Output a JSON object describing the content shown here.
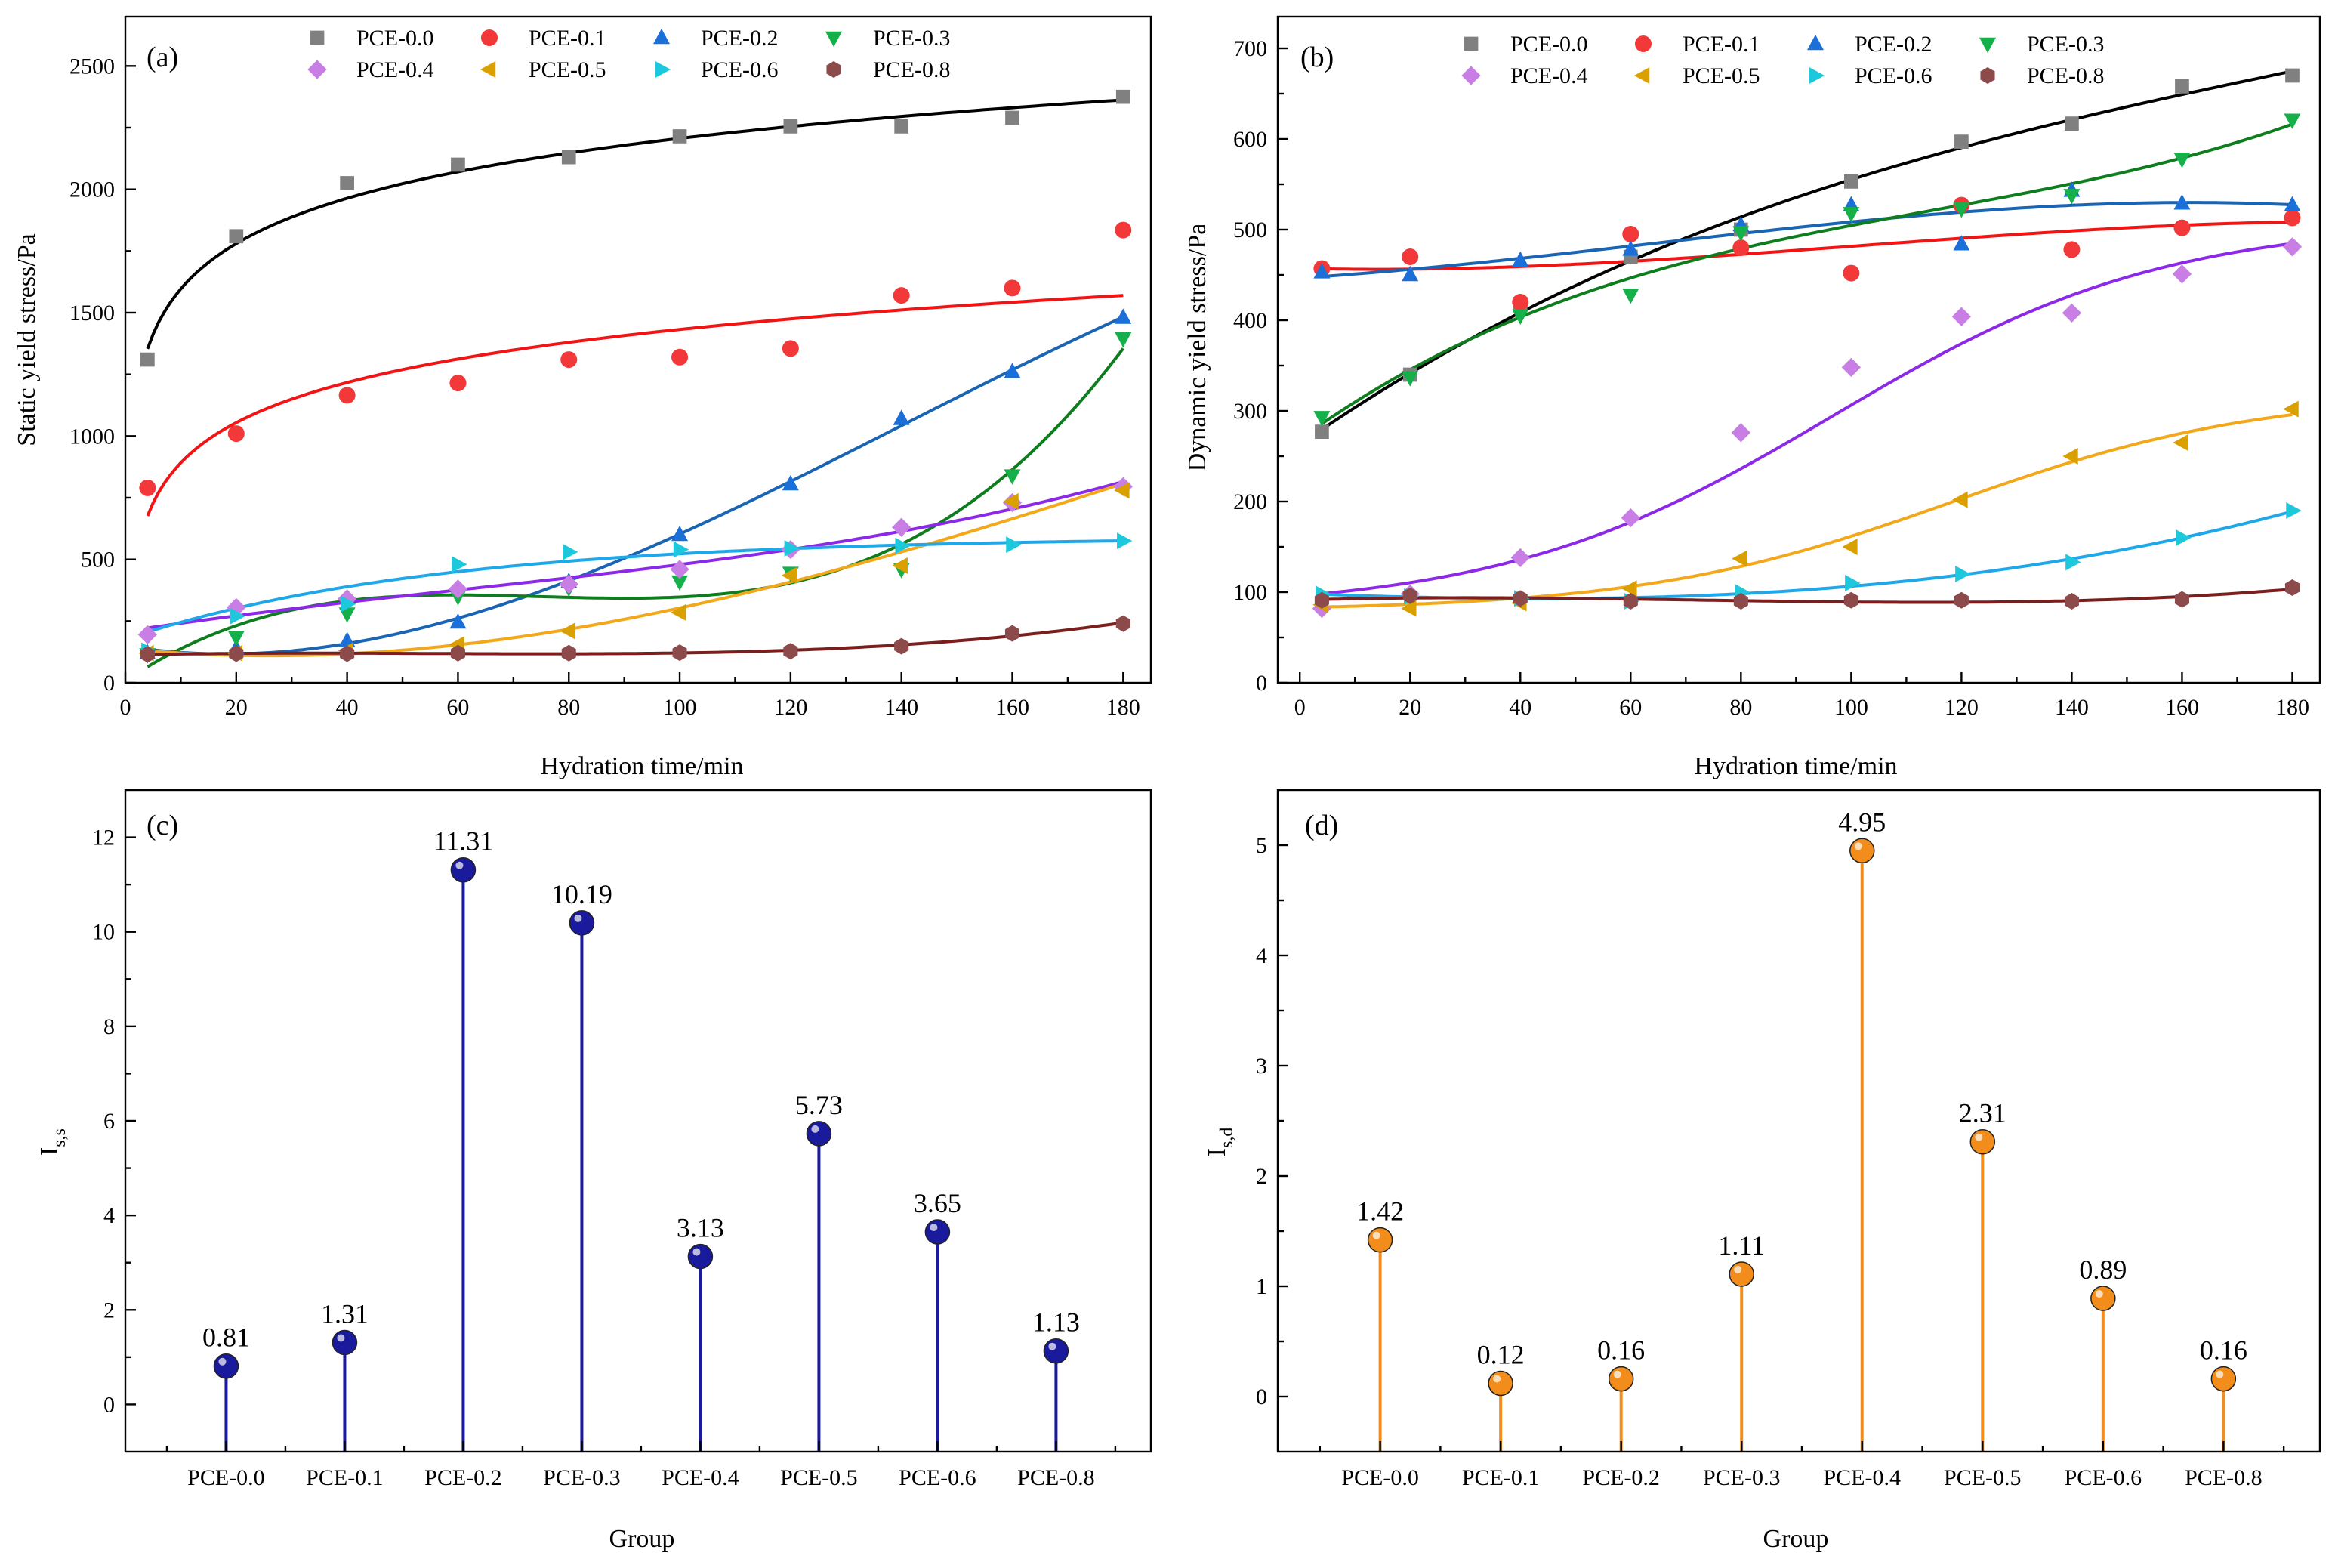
{
  "legend_series": [
    {
      "label": "PCE-0.0",
      "color": "#808080",
      "marker": "square",
      "curve": "#000000"
    },
    {
      "label": "PCE-0.1",
      "color": "#f23838",
      "marker": "circle",
      "curve": "#f21414"
    },
    {
      "label": "PCE-0.2",
      "color": "#1a6fd8",
      "marker": "triangle-up",
      "curve": "#1a64b4"
    },
    {
      "label": "PCE-0.3",
      "color": "#16b04a",
      "marker": "triangle-down",
      "curve": "#0d7d1e"
    },
    {
      "label": "PCE-0.4",
      "color": "#c97ee6",
      "marker": "diamond",
      "curve": "#8c28e8"
    },
    {
      "label": "PCE-0.5",
      "color": "#d9a000",
      "marker": "triangle-left",
      "curve": "#f2a81a"
    },
    {
      "label": "PCE-0.6",
      "color": "#1ec8dc",
      "marker": "triangle-right",
      "curve": "#1ea8ea"
    },
    {
      "label": "PCE-0.8",
      "color": "#8c4a4a",
      "marker": "hexagon",
      "curve": "#7a1e1e"
    }
  ],
  "chart_data": [
    {
      "type": "scatter",
      "panel_label": "(a)",
      "xlabel": "Hydration time/min",
      "ylabel": "Static yield stress/Pa",
      "xlim": [
        0,
        185
      ],
      "ylim": [
        0,
        2700
      ],
      "x_ticks": [
        0,
        20,
        40,
        60,
        80,
        100,
        120,
        140,
        160,
        180
      ],
      "y_ticks": [
        0,
        500,
        1000,
        1500,
        2000,
        2500
      ],
      "x": [
        4,
        20,
        40,
        60,
        80,
        100,
        120,
        140,
        160,
        180
      ],
      "series": [
        {
          "name": "PCE-0.0",
          "values": [
            1310,
            1810,
            2025,
            2100,
            2130,
            2215,
            2255,
            2255,
            2290,
            2375
          ],
          "fit": "log"
        },
        {
          "name": "PCE-0.1",
          "values": [
            790,
            1010,
            1165,
            1215,
            1310,
            1320,
            1355,
            1570,
            1600,
            1835
          ],
          "fit": "log"
        },
        {
          "name": "PCE-0.2",
          "values": [
            120,
            140,
            170,
            245,
            410,
            600,
            805,
            1070,
            1260,
            1480
          ],
          "fit": "poly"
        },
        {
          "name": "PCE-0.3",
          "values": [
            115,
            185,
            280,
            350,
            385,
            410,
            445,
            460,
            840,
            1395
          ],
          "fit": "poly"
        },
        {
          "name": "PCE-0.4",
          "values": [
            195,
            305,
            340,
            380,
            400,
            460,
            540,
            630,
            730,
            795
          ],
          "fit": "poly"
        },
        {
          "name": "PCE-0.5",
          "values": [
            120,
            120,
            130,
            155,
            210,
            285,
            435,
            475,
            735,
            780
          ],
          "fit": "poly"
        },
        {
          "name": "PCE-0.6",
          "values": [
            130,
            270,
            320,
            480,
            530,
            540,
            545,
            555,
            560,
            575
          ],
          "fit": "sat"
        },
        {
          "name": "PCE-0.8",
          "values": [
            115,
            118,
            118,
            120,
            120,
            122,
            128,
            148,
            200,
            240
          ],
          "fit": "poly"
        }
      ]
    },
    {
      "type": "scatter",
      "panel_label": "(b)",
      "xlabel": "Hydration time/min",
      "ylabel": "Dynamic yield stress/Pa",
      "xlim": [
        -4,
        185
      ],
      "ylim": [
        0,
        735
      ],
      "x_ticks": [
        0,
        20,
        40,
        60,
        80,
        100,
        120,
        140,
        160,
        180
      ],
      "y_ticks": [
        0,
        100,
        200,
        300,
        400,
        500,
        600,
        700
      ],
      "x": [
        4,
        20,
        40,
        60,
        80,
        100,
        120,
        140,
        160,
        180
      ],
      "series": [
        {
          "name": "PCE-0.0",
          "values": [
            277,
            340,
            418,
            470,
            500,
            553,
            597,
            617,
            658,
            670
          ],
          "fit": "poly"
        },
        {
          "name": "PCE-0.1",
          "values": [
            457,
            470,
            420,
            495,
            480,
            452,
            527,
            478,
            502,
            513
          ],
          "fit": "poly"
        },
        {
          "name": "PCE-0.2",
          "values": [
            453,
            450,
            466,
            478,
            505,
            527,
            484,
            543,
            529,
            527
          ],
          "fit": "poly"
        },
        {
          "name": "PCE-0.3",
          "values": [
            293,
            337,
            405,
            428,
            497,
            518,
            523,
            538,
            578,
            621
          ],
          "fit": "poly"
        },
        {
          "name": "PCE-0.4",
          "values": [
            82,
            98,
            138,
            182,
            276,
            348,
            404,
            408,
            451,
            481
          ],
          "fit": "sigmoid"
        },
        {
          "name": "PCE-0.5",
          "values": [
            86,
            82,
            88,
            104,
            137,
            150,
            202,
            250,
            265,
            302
          ],
          "fit": "sigmoid"
        },
        {
          "name": "PCE-0.6",
          "values": [
            98,
            95,
            93,
            90,
            100,
            110,
            120,
            133,
            160,
            190
          ],
          "fit": "poly"
        },
        {
          "name": "PCE-0.8",
          "values": [
            91,
            96,
            93,
            90,
            90,
            91,
            91,
            90,
            92,
            105
          ],
          "fit": "poly"
        }
      ]
    },
    {
      "type": "bar",
      "style": "lollipop",
      "panel_label": "(c)",
      "xlabel": "Group",
      "ylabel_main": "I",
      "ylabel_sub": "s,s",
      "ylim": [
        -1,
        13
      ],
      "y_ticks": [
        0,
        2,
        4,
        6,
        8,
        10,
        12
      ],
      "color": "#1a1a9c",
      "categories": [
        "PCE-0.0",
        "PCE-0.1",
        "PCE-0.2",
        "PCE-0.3",
        "PCE-0.4",
        "PCE-0.5",
        "PCE-0.6",
        "PCE-0.8"
      ],
      "values": [
        0.81,
        1.31,
        11.31,
        10.19,
        3.13,
        5.73,
        3.65,
        1.13
      ],
      "value_labels": [
        "0.81",
        "1.31",
        "11.31",
        "10.19",
        "3.13",
        "5.73",
        "3.65",
        "1.13"
      ]
    },
    {
      "type": "bar",
      "style": "lollipop",
      "panel_label": "(d)",
      "xlabel": "Group",
      "ylabel_main": "I",
      "ylabel_sub": "s,d",
      "ylim": [
        -0.5,
        5.5
      ],
      "y_ticks": [
        0,
        1,
        2,
        3,
        4,
        5
      ],
      "color": "#f28c1a",
      "categories": [
        "PCE-0.0",
        "PCE-0.1",
        "PCE-0.2",
        "PCE-0.3",
        "PCE-0.4",
        "PCE-0.5",
        "PCE-0.6",
        "PCE-0.8"
      ],
      "values": [
        1.42,
        0.12,
        0.16,
        1.11,
        4.95,
        2.31,
        0.89,
        0.16
      ],
      "value_labels": [
        "1.42",
        "0.12",
        "0.16",
        "1.11",
        "4.95",
        "2.31",
        "0.89",
        "0.16"
      ]
    }
  ]
}
